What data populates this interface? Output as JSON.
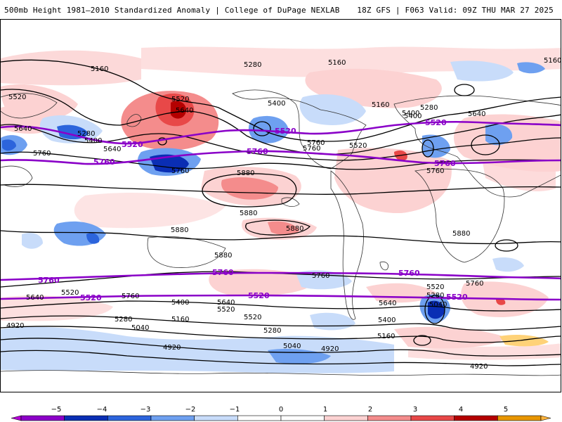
{
  "header": {
    "title_left": "500mb Height 1981–2010 Standardized Anomaly | College of DuPage NEXLAB",
    "title_right": "18Z GFS | F063 Valid: 09Z THU MAR 27 2025"
  },
  "colors": {
    "contour_black": "#000000",
    "contour_purple": "#8a00c8",
    "coastline": "#333333"
  },
  "contour_labels_black": [
    "5160",
    "5280",
    "5160",
    "5160",
    "5520",
    "5640",
    "5280",
    "5400",
    "5640",
    "5760",
    "5520",
    "5640",
    "5400",
    "5160",
    "5280",
    "5400",
    "5640",
    "5760",
    "5520",
    "5760",
    "5760",
    "5880",
    "5880",
    "5880",
    "5880",
    "5880",
    "5880",
    "5760",
    "5760",
    "5520",
    "5640",
    "5520",
    "5280",
    "5760",
    "5400",
    "5640",
    "5160",
    "5520",
    "5040",
    "5280",
    "4920",
    "4920",
    "5040",
    "4920",
    "4920",
    "5400",
    "5520",
    "5280",
    "5040",
    "5160",
    "5640",
    "5760",
    "5400"
  ],
  "contour_labels_purple": [
    "5520",
    "5520",
    "5520",
    "5760",
    "5760",
    "5760",
    "5760",
    "5760",
    "5760",
    "5520",
    "5520",
    "5520"
  ],
  "colorbar": {
    "ticks": [
      "−5",
      "−4",
      "−3",
      "−2",
      "−1",
      "0",
      "1",
      "2",
      "3",
      "4",
      "5"
    ],
    "colors": [
      "#b400d8",
      "#8c00c8",
      "#0a2eb4",
      "#2c64dc",
      "#6ea0f0",
      "#c8dcfa",
      "#ffffff",
      "#ffffff",
      "#fcd2d2",
      "#f48c8c",
      "#e84848",
      "#b40000",
      "#e89600",
      "#ffb43c"
    ]
  }
}
